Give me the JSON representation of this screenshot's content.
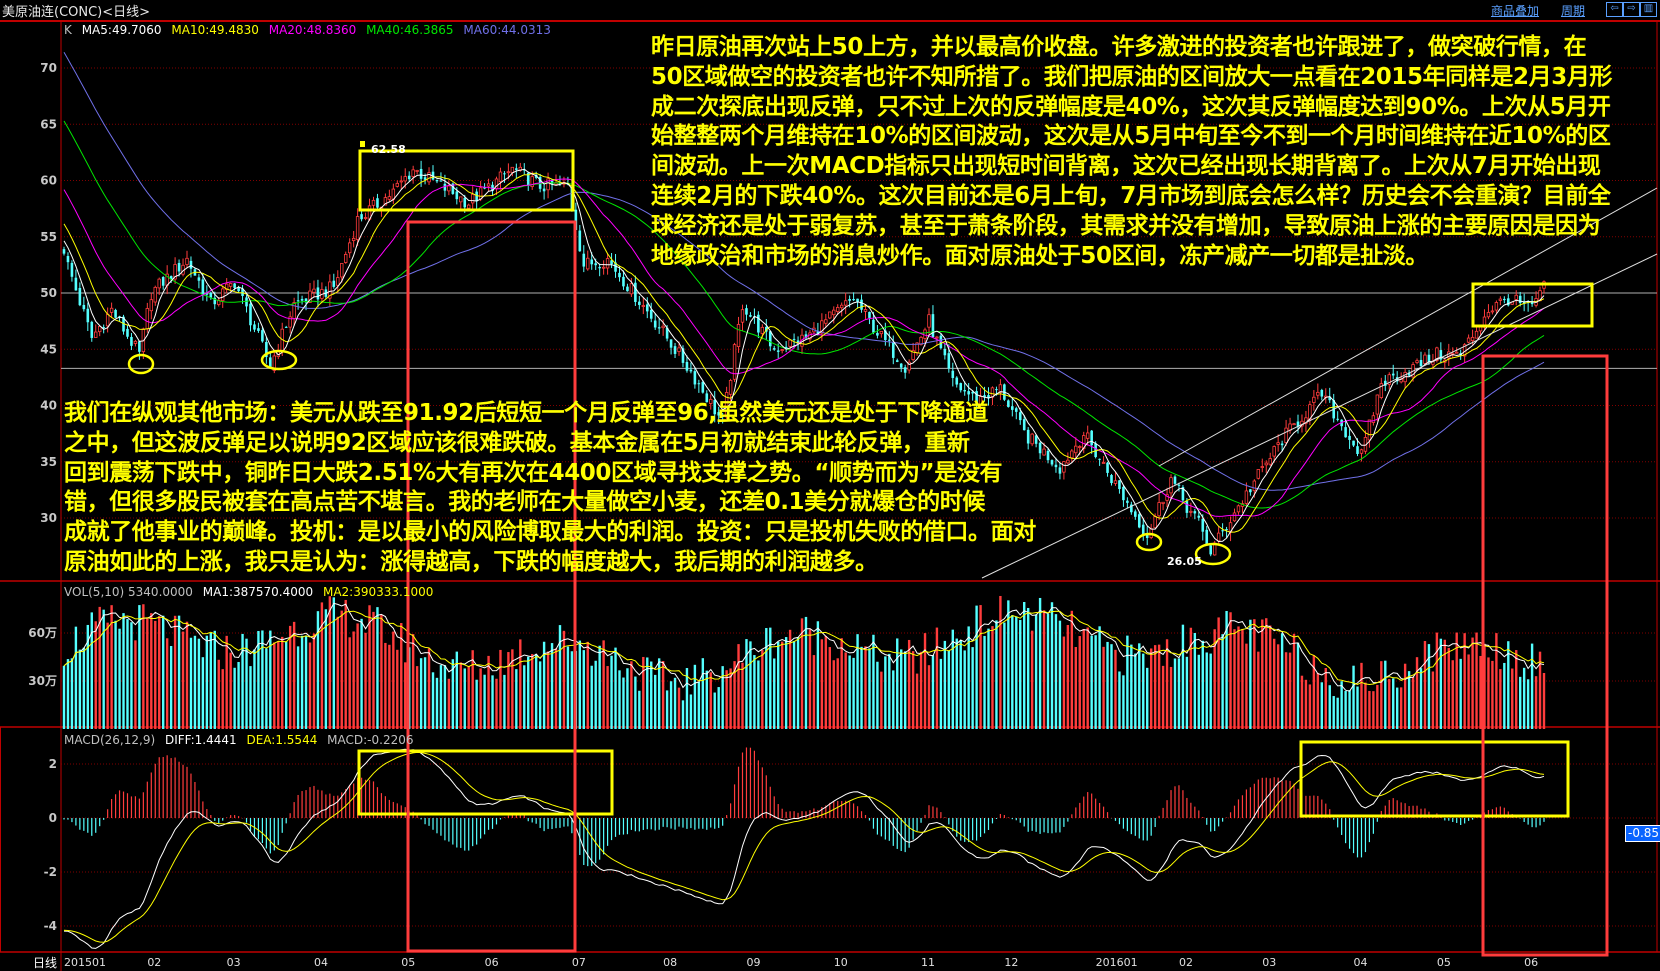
{
  "window": {
    "title": "美原油连(CONC)<日线>",
    "links": [
      "商品叠加",
      "周期"
    ],
    "nav_icons": [
      "arrow-left-icon",
      "arrow-right-icon",
      "layout-icon"
    ]
  },
  "price_legend": {
    "k": "K",
    "ma5": "MA5:49.7060",
    "ma10": "MA10:49.4830",
    "ma20": "MA20:48.8360",
    "ma40": "MA40:46.3865",
    "ma60": "MA60:44.0313"
  },
  "vol_legend": {
    "vol": "VOL(5,10) 5340.0000",
    "ma1": "MA1:387570.4000",
    "ma2": "MA2:390333.1000"
  },
  "macd_legend": {
    "name": "MACD(26,12,9)",
    "diff": "DIFF:1.4441",
    "dea": "DEA:1.5544",
    "macd": "MACD:-0.2206"
  },
  "axis_corner_label": "日线",
  "price_labels": {
    "high": "62.58",
    "low": "26.05"
  },
  "macd_cursor_value": "-0.85",
  "colors": {
    "up": "#ff3c3c",
    "down": "#54ffff",
    "ma5": "#ffffff",
    "ma10": "#ffff00",
    "ma20": "#ff00ff",
    "ma40": "#00e600",
    "ma60": "#7070e8",
    "grid": "#800000",
    "highlight_box": "#ffff00",
    "range_box": "#ff3c3c",
    "annotation_text": "#ffff00"
  },
  "annotations": {
    "top_lines": [
      "昨日原油再次站上50上方，并以最高价收盘。许多激进的投资者也许跟进了，做突破行情，在",
      "50区域做空的投资者也许不知所措了。我们把原油的区间放大一点看在2015年同样是2月3月形",
      "成二次探底出现反弹，只不过上次的反弹幅度是40%，这次其反弹幅度达到90%。上次从5月开",
      "始整整两个月维持在10%的区间波动，这次是从5月中旬至今不到一个月时间维持在近10%的区",
      "间波动。上一次MACD指标只出现短时间背离，这次已经出现长期背离了。上次从7月开始出现",
      "连续2月的下跌40%。这次目前还是6月上旬，7月市场到底会怎么样？历史会不会重演？目前全",
      "球经济还是处于弱复苏，甚至于萧条阶段，其需求并没有增加，导致原油上涨的主要原因是因为",
      "地缘政治和市场的消息炒作。面对原油处于50区间，冻产减产一切都是扯淡。"
    ],
    "bottom_lines": [
      "我们在纵观其他市场：美元从跌至91.92后短短一个月反弹至96,虽然美元还是处于下降通道",
      "之中，但这波反弹足以说明92区域应该很难跌破。基本金属在5月初就结束此轮反弹，重新",
      "回到震荡下跌中，铜昨日大跌2.51%大有再次在4400区域寻找支撑之势。“顺势而为”是没有",
      "错，但很多股民被套在高点苦不堪言。我的老师在大量做空小麦，还差0.1美分就爆仓的时候",
      "成就了他事业的巅峰。投机：是以最小的风险博取最大的利润。投资：只是投机失败的借口。面对",
      "原油如此的上涨，我只是认为：涨得越高，下跌的幅度越大，我后期的利润越多。"
    ]
  },
  "chart_data": {
    "type": "candlestick",
    "instrument": "美原油连(CONC)",
    "period": "日线",
    "date_range": [
      "2015-01-02",
      "2016-06-08"
    ],
    "x_tick_labels": [
      "201501",
      "02",
      "03",
      "04",
      "05",
      "06",
      "07",
      "08",
      "09",
      "10",
      "11",
      "12",
      "201601",
      "02",
      "03",
      "04",
      "05",
      "06"
    ],
    "price_ticks": [
      70,
      65,
      60,
      55,
      50,
      45,
      40,
      35,
      30
    ],
    "price_ylim": [
      25,
      73
    ],
    "horizontal_levels": [
      50,
      43.3
    ],
    "volume_ticks": [
      {
        "label": "60万",
        "value": 600000
      },
      {
        "label": "30万",
        "value": 300000
      }
    ],
    "macd_ticks": [
      2,
      0,
      -2,
      -4
    ],
    "macd_ylim": [
      -4.9,
      2.9
    ],
    "approx_close": [
      [
        "2015-01-02",
        53.5
      ],
      [
        "2015-01-13",
        46
      ],
      [
        "2015-01-20",
        48.5
      ],
      [
        "2015-01-29",
        44.5
      ],
      [
        "2015-02-03",
        50
      ],
      [
        "2015-02-16",
        53
      ],
      [
        "2015-02-24",
        49
      ],
      [
        "2015-03-04",
        51
      ],
      [
        "2015-03-17",
        43.5
      ],
      [
        "2015-03-25",
        49
      ],
      [
        "2015-04-08",
        50.5
      ],
      [
        "2015-04-16",
        56.5
      ],
      [
        "2015-04-29",
        59
      ],
      [
        "2015-05-06",
        61
      ],
      [
        "2015-05-15",
        59.5
      ],
      [
        "2015-05-26",
        58
      ],
      [
        "2015-06-10",
        61
      ],
      [
        "2015-06-19",
        59.5
      ],
      [
        "2015-06-30",
        59.5
      ],
      [
        "2015-07-06",
        52.5
      ],
      [
        "2015-07-14",
        53
      ],
      [
        "2015-07-31",
        47
      ],
      [
        "2015-08-12",
        43
      ],
      [
        "2015-08-24",
        38.5
      ],
      [
        "2015-08-31",
        49
      ],
      [
        "2015-09-10",
        45
      ],
      [
        "2015-09-22",
        46
      ],
      [
        "2015-10-08",
        49.5
      ],
      [
        "2015-10-16",
        46.5
      ],
      [
        "2015-10-27",
        43.5
      ],
      [
        "2015-11-04",
        47.5
      ],
      [
        "2015-11-12",
        42
      ],
      [
        "2015-11-20",
        40.5
      ],
      [
        "2015-11-30",
        41.5
      ],
      [
        "2015-12-08",
        37.5
      ],
      [
        "2015-12-21",
        34.5
      ],
      [
        "2015-12-29",
        37.5
      ],
      [
        "2016-01-08",
        33
      ],
      [
        "2016-01-20",
        28.5
      ],
      [
        "2016-01-28",
        33.5
      ],
      [
        "2016-02-03",
        31
      ],
      [
        "2016-02-08",
        29.5
      ],
      [
        "2016-02-11",
        27
      ],
      [
        "2016-02-19",
        30.5
      ],
      [
        "2016-03-08",
        37
      ],
      [
        "2016-03-22",
        41
      ],
      [
        "2016-04-05",
        35.5
      ],
      [
        "2016-04-12",
        42
      ],
      [
        "2016-04-20",
        43
      ],
      [
        "2016-05-02",
        44.5
      ],
      [
        "2016-05-10",
        44.5
      ],
      [
        "2016-05-19",
        48.5
      ],
      [
        "2016-05-26",
        49.5
      ],
      [
        "2016-06-03",
        48.5
      ],
      [
        "2016-06-08",
        51
      ]
    ],
    "marked_high": 62.58,
    "marked_low": 26.05
  }
}
